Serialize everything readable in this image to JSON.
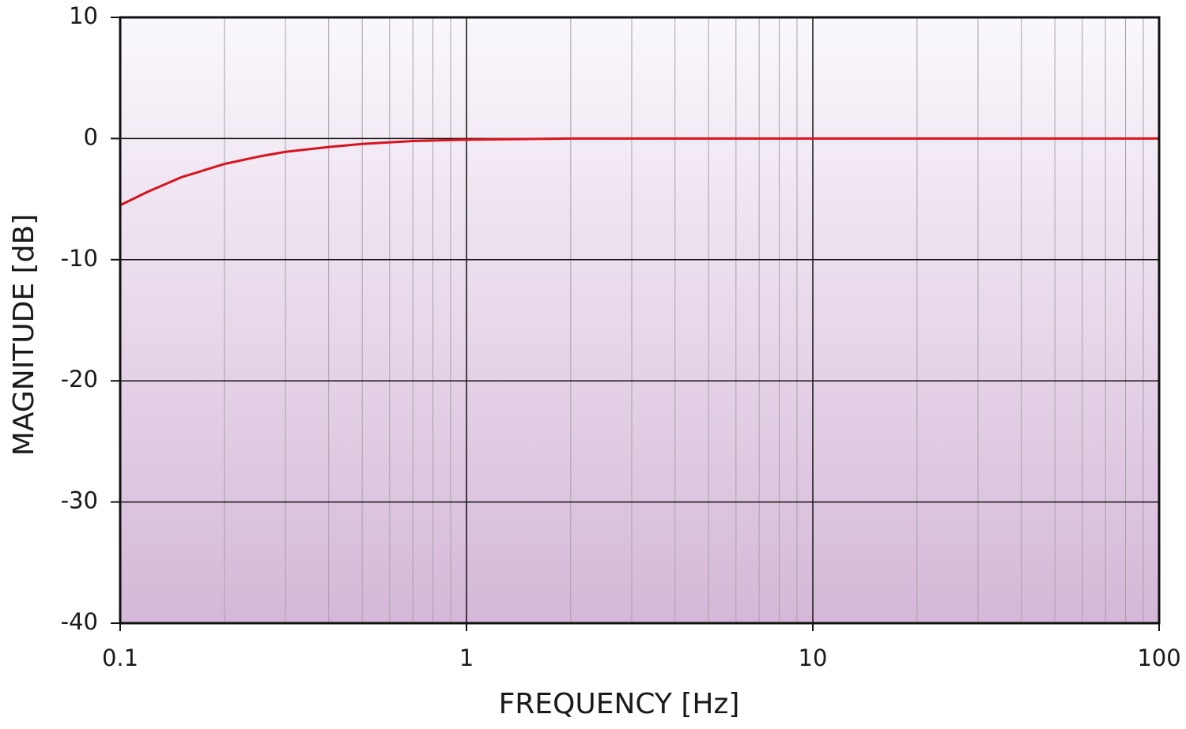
{
  "chart_data": {
    "type": "line",
    "x_label": "FREQUENCY [Hz]",
    "y_label": "MAGNITUDE [dB]",
    "x": [
      0.1,
      0.12,
      0.15,
      0.2,
      0.25,
      0.3,
      0.4,
      0.5,
      0.7,
      1,
      2,
      5,
      10,
      100
    ],
    "values": [
      -5.5,
      -4.4,
      -3.2,
      -2.1,
      -1.5,
      -1.1,
      -0.7,
      -0.45,
      -0.2,
      -0.1,
      0,
      0,
      0,
      0
    ],
    "color": "#d7141e",
    "xscale": "log",
    "xlim": [
      0.1,
      100
    ],
    "xticks": [
      0.1,
      1,
      10,
      100
    ],
    "xminorticks": [
      0.2,
      0.3,
      0.4,
      0.5,
      0.6,
      0.7,
      0.8,
      0.9,
      2,
      3,
      4,
      5,
      6,
      7,
      8,
      9,
      20,
      30,
      40,
      50,
      60,
      70,
      80,
      90
    ],
    "ylim": [
      -40,
      10
    ],
    "yticks": [
      10,
      0,
      -10,
      -20,
      -30,
      -40
    ],
    "grid": true
  }
}
